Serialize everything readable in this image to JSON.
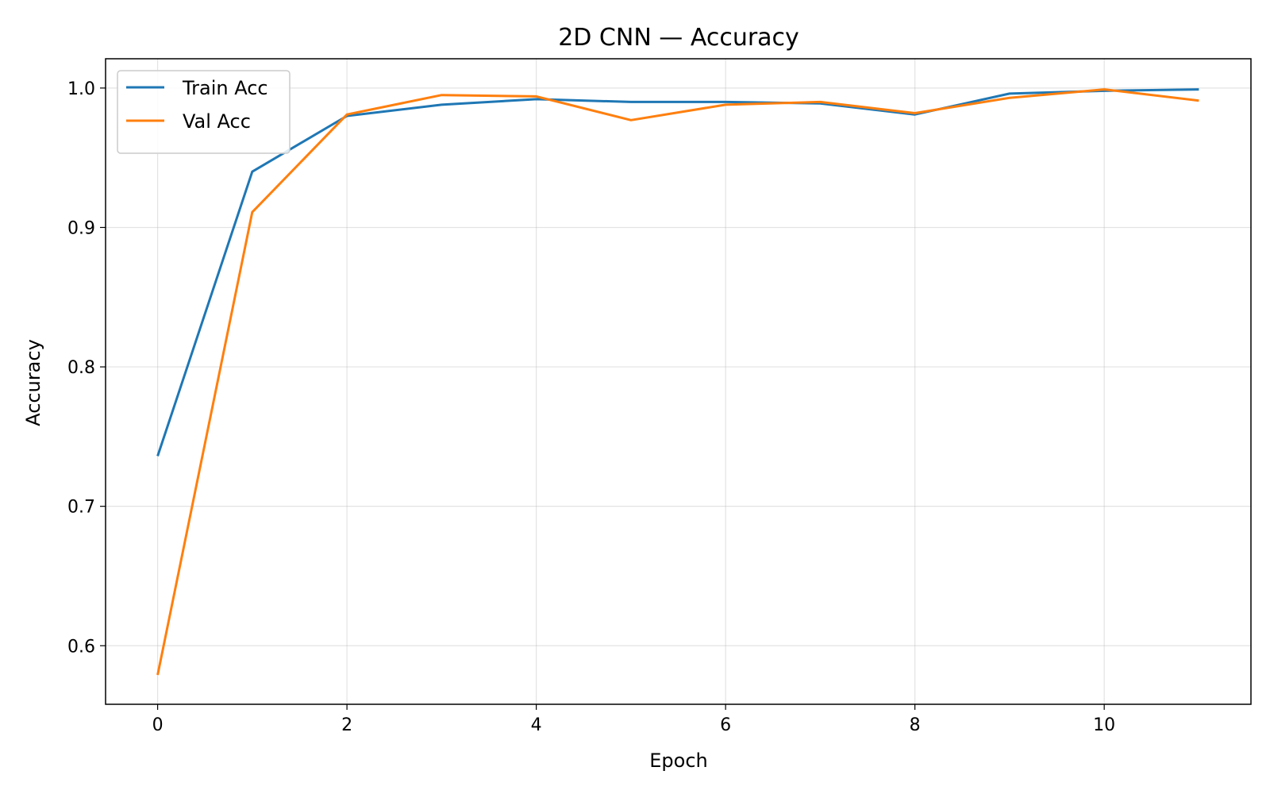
{
  "chart_data": {
    "type": "line",
    "title": "2D CNN — Accuracy",
    "xlabel": "Epoch",
    "ylabel": "Accuracy",
    "xlim": [
      -0.55,
      11.55
    ],
    "ylim": [
      0.558,
      1.021
    ],
    "xticks": [
      0,
      2,
      4,
      6,
      8,
      10
    ],
    "yticks": [
      0.6,
      0.7,
      0.8,
      0.9,
      1.0
    ],
    "xtick_labels": [
      "0",
      "2",
      "4",
      "6",
      "8",
      "10"
    ],
    "ytick_labels": [
      "0.6",
      "0.7",
      "0.8",
      "0.9",
      "1.0"
    ],
    "grid": true,
    "legend_position": "top-left",
    "x": [
      0,
      1,
      2,
      3,
      4,
      5,
      6,
      7,
      8,
      9,
      10,
      11
    ],
    "series": [
      {
        "name": "Train Acc",
        "color": "#1f77b4",
        "values": [
          0.736,
          0.94,
          0.98,
          0.988,
          0.992,
          0.99,
          0.99,
          0.989,
          0.981,
          0.996,
          0.998,
          0.999
        ]
      },
      {
        "name": "Val Acc",
        "color": "#ff7f0e",
        "values": [
          0.579,
          0.911,
          0.981,
          0.995,
          0.994,
          0.977,
          0.988,
          0.99,
          0.982,
          0.993,
          0.999,
          0.991
        ]
      }
    ]
  }
}
